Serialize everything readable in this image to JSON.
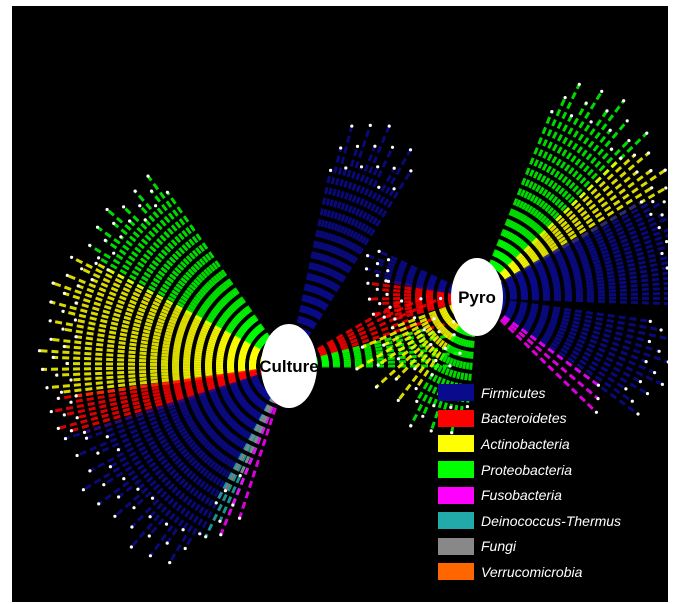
{
  "nodes": {
    "culture": {
      "label": "Culture"
    },
    "pyro": {
      "label": "Pyro"
    }
  },
  "legend": [
    {
      "name": "Firmicutes",
      "color": "#0a0a8c"
    },
    {
      "name": "Bacteroidetes",
      "color": "#ff0000"
    },
    {
      "name": "Actinobacteria",
      "color": "#ffff00"
    },
    {
      "name": "Proteobacteria",
      "color": "#00ff00"
    },
    {
      "name": "Fusobacteria",
      "color": "#ff00ff"
    },
    {
      "name": "Deinococcus-Thermus",
      "color": "#22aaaa"
    },
    {
      "name": "Fungi",
      "color": "#888888"
    },
    {
      "name": "Verrucomicrobia",
      "color": "#ff6600"
    }
  ]
}
